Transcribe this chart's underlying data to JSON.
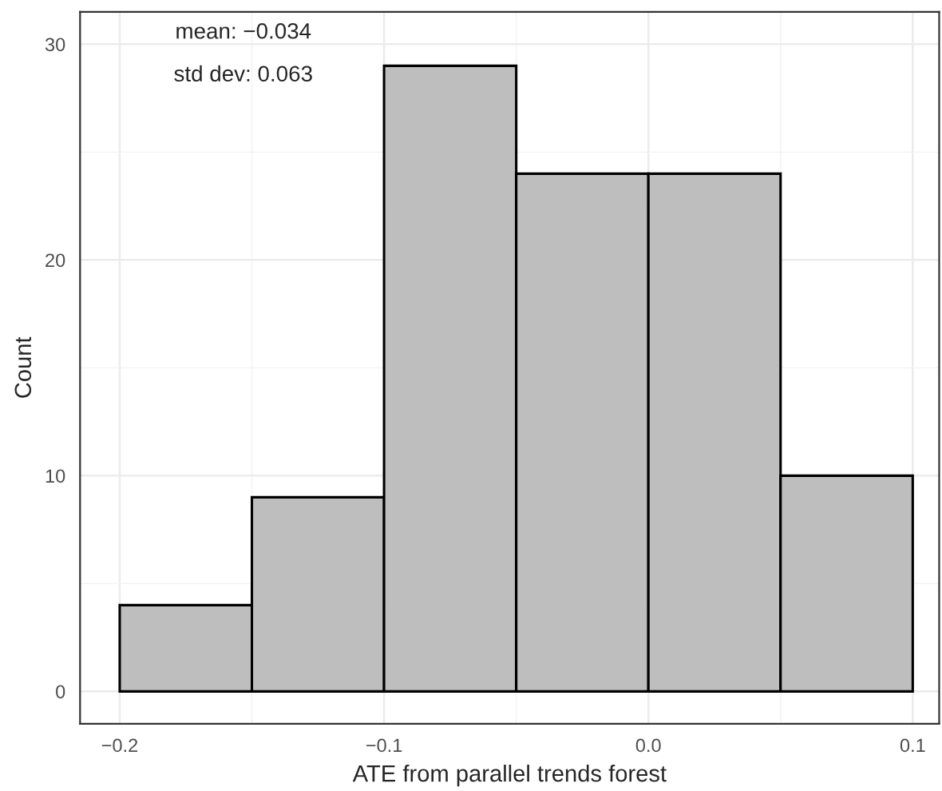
{
  "chart_data": {
    "type": "histogram",
    "xlabel": "ATE from parallel trends forest",
    "ylabel": "Count",
    "bins": [
      -0.2,
      -0.15,
      -0.1,
      -0.05,
      0.0,
      0.05,
      0.1
    ],
    "values": [
      4,
      9,
      29,
      24,
      24,
      10
    ],
    "color": "#bebebe",
    "xlim": [
      -0.215,
      0.11
    ],
    "ylim": [
      -1.5,
      31.5
    ],
    "xticks": [
      {
        "value": -0.2,
        "label": "−0.2"
      },
      {
        "value": -0.1,
        "label": "−0.1"
      },
      {
        "value": 0.0,
        "label": "0.0"
      },
      {
        "value": 0.1,
        "label": "0.1"
      }
    ],
    "yticks": [
      0,
      10,
      20,
      30
    ],
    "grid": true,
    "annotations": [
      "mean: −0.034",
      "std dev: 0.063"
    ]
  }
}
